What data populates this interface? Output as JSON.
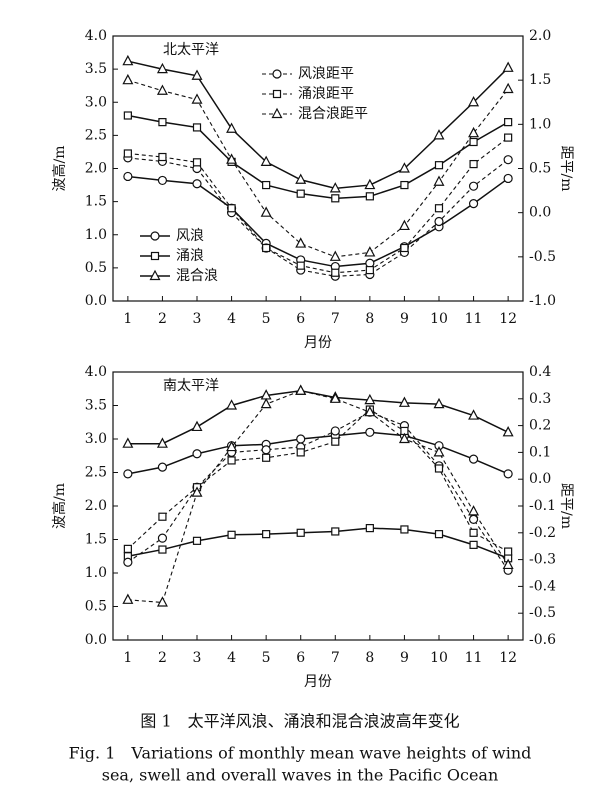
{
  "chart_data": [
    {
      "type": "line",
      "title": "北太平洋",
      "xlabel": "月份",
      "ylabel": "波高/m",
      "y2label": "距平/m",
      "x": [
        1,
        2,
        3,
        4,
        5,
        6,
        7,
        8,
        9,
        10,
        11,
        12
      ],
      "xlim": [
        0.57,
        12.43
      ],
      "xticks": [
        1,
        2,
        3,
        4,
        5,
        6,
        7,
        8,
        9,
        10,
        11,
        12
      ],
      "ylim": [
        0,
        4
      ],
      "yticks": [
        {
          "value": 0,
          "label": "0.0"
        },
        0.5,
        {
          "value": 1,
          "label": "1.0"
        },
        1.5,
        {
          "value": 2,
          "label": "2.0"
        },
        2.5,
        {
          "value": 3,
          "label": "3.0"
        },
        3.5,
        {
          "value": 4,
          "label": "4.0"
        }
      ],
      "y2lim": [
        -1,
        2
      ],
      "y2ticks": [
        {
          "value": -1,
          "label": "-1.0"
        },
        -0.5,
        {
          "value": 0,
          "label": "0.0"
        },
        0.5,
        {
          "value": 1,
          "label": "1.0"
        },
        1.5,
        {
          "value": 2,
          "label": "2.0"
        }
      ],
      "grid": false,
      "legend": true,
      "series": [
        {
          "name": "风浪",
          "color": "#111",
          "marker": "circle",
          "values": [
            1.88,
            1.82,
            1.77,
            1.4,
            0.87,
            0.62,
            0.52,
            0.57,
            0.82,
            1.12,
            1.47,
            1.85
          ]
        },
        {
          "name": "涌浪",
          "color": "#111",
          "marker": "square",
          "values": [
            2.8,
            2.7,
            2.62,
            2.1,
            1.75,
            1.62,
            1.55,
            1.58,
            1.75,
            2.05,
            2.4,
            2.7
          ]
        },
        {
          "name": "混合浪",
          "color": "#111",
          "marker": "triangle",
          "values": [
            3.62,
            3.5,
            3.4,
            2.6,
            2.1,
            1.83,
            1.7,
            1.75,
            2.0,
            2.5,
            3.0,
            3.52
          ]
        },
        {
          "name": "风浪距平",
          "color": "#111",
          "marker": "circle",
          "dashed": true,
          "axis": "y2",
          "values": [
            0.62,
            0.58,
            0.5,
            0.0,
            -0.4,
            -0.65,
            -0.72,
            -0.7,
            -0.45,
            -0.1,
            0.3,
            0.6
          ]
        },
        {
          "name": "涌浪距平",
          "color": "#111",
          "marker": "square",
          "dashed": true,
          "axis": "y2",
          "values": [
            0.67,
            0.63,
            0.57,
            0.05,
            -0.4,
            -0.6,
            -0.68,
            -0.65,
            -0.4,
            0.05,
            0.55,
            0.85
          ]
        },
        {
          "name": "混合浪距平",
          "color": "#111",
          "marker": "triangle",
          "dashed": true,
          "axis": "y2",
          "values": [
            1.5,
            1.38,
            1.28,
            0.6,
            0.0,
            -0.35,
            -0.5,
            -0.45,
            -0.15,
            0.35,
            0.9,
            1.4
          ]
        }
      ]
    },
    {
      "type": "line",
      "title": "南太平洋",
      "xlabel": "月份",
      "ylabel": "波高/m",
      "y2label": "距平/m",
      "x": [
        1,
        2,
        3,
        4,
        5,
        6,
        7,
        8,
        9,
        10,
        11,
        12
      ],
      "xlim": [
        0.57,
        12.43
      ],
      "xticks": [
        1,
        2,
        3,
        4,
        5,
        6,
        7,
        8,
        9,
        10,
        11,
        12
      ],
      "ylim": [
        0,
        4
      ],
      "yticks": [
        {
          "value": 0,
          "label": "0.0"
        },
        0.5,
        {
          "value": 1,
          "label": "1.0"
        },
        1.5,
        {
          "value": 2,
          "label": "2.0"
        },
        2.5,
        {
          "value": 3,
          "label": "3.0"
        },
        3.5,
        {
          "value": 4,
          "label": "4.0"
        }
      ],
      "y2lim": [
        -0.6,
        0.4
      ],
      "y2ticks": [
        -0.6,
        -0.5,
        -0.4,
        -0.3,
        -0.2,
        -0.1,
        {
          "value": 0,
          "label": "0.0"
        },
        0.1,
        0.2,
        0.3,
        0.4
      ],
      "grid": false,
      "legend": false,
      "series": [
        {
          "color": "#111",
          "marker": "circle",
          "values": [
            2.48,
            2.58,
            2.78,
            2.9,
            2.92,
            3.0,
            3.05,
            3.1,
            3.05,
            2.9,
            2.7,
            2.48
          ]
        },
        {
          "color": "#111",
          "marker": "square",
          "values": [
            1.25,
            1.35,
            1.48,
            1.57,
            1.58,
            1.6,
            1.62,
            1.67,
            1.65,
            1.58,
            1.42,
            1.22
          ]
        },
        {
          "color": "#111",
          "marker": "triangle",
          "values": [
            2.93,
            2.93,
            3.18,
            3.5,
            3.65,
            3.72,
            3.62,
            3.58,
            3.54,
            3.52,
            3.35,
            3.1
          ]
        },
        {
          "color": "#111",
          "marker": "circle",
          "dashed": true,
          "axis": "y2",
          "values": [
            -0.31,
            -0.22,
            -0.03,
            0.1,
            0.11,
            0.12,
            0.18,
            0.25,
            0.2,
            0.05,
            -0.15,
            -0.34
          ]
        },
        {
          "color": "#111",
          "marker": "square",
          "dashed": true,
          "axis": "y2",
          "values": [
            -0.26,
            -0.14,
            -0.03,
            0.07,
            0.08,
            0.1,
            0.14,
            0.26,
            0.18,
            0.04,
            -0.2,
            -0.27
          ]
        },
        {
          "color": "#111",
          "marker": "triangle",
          "dashed": true,
          "axis": "y2",
          "values": [
            -0.45,
            -0.46,
            -0.05,
            0.12,
            0.28,
            0.33,
            0.3,
            0.25,
            0.15,
            0.1,
            -0.12,
            -0.32
          ]
        }
      ]
    }
  ],
  "caption": {
    "cn": "图 1　太平洋风浪、涌浪和混合浪波高年变化",
    "en_line1": "Fig. 1　Variations of monthly mean wave heights of wind",
    "en_line2": "sea, swell and overall waves in the Pacific Ocean"
  }
}
